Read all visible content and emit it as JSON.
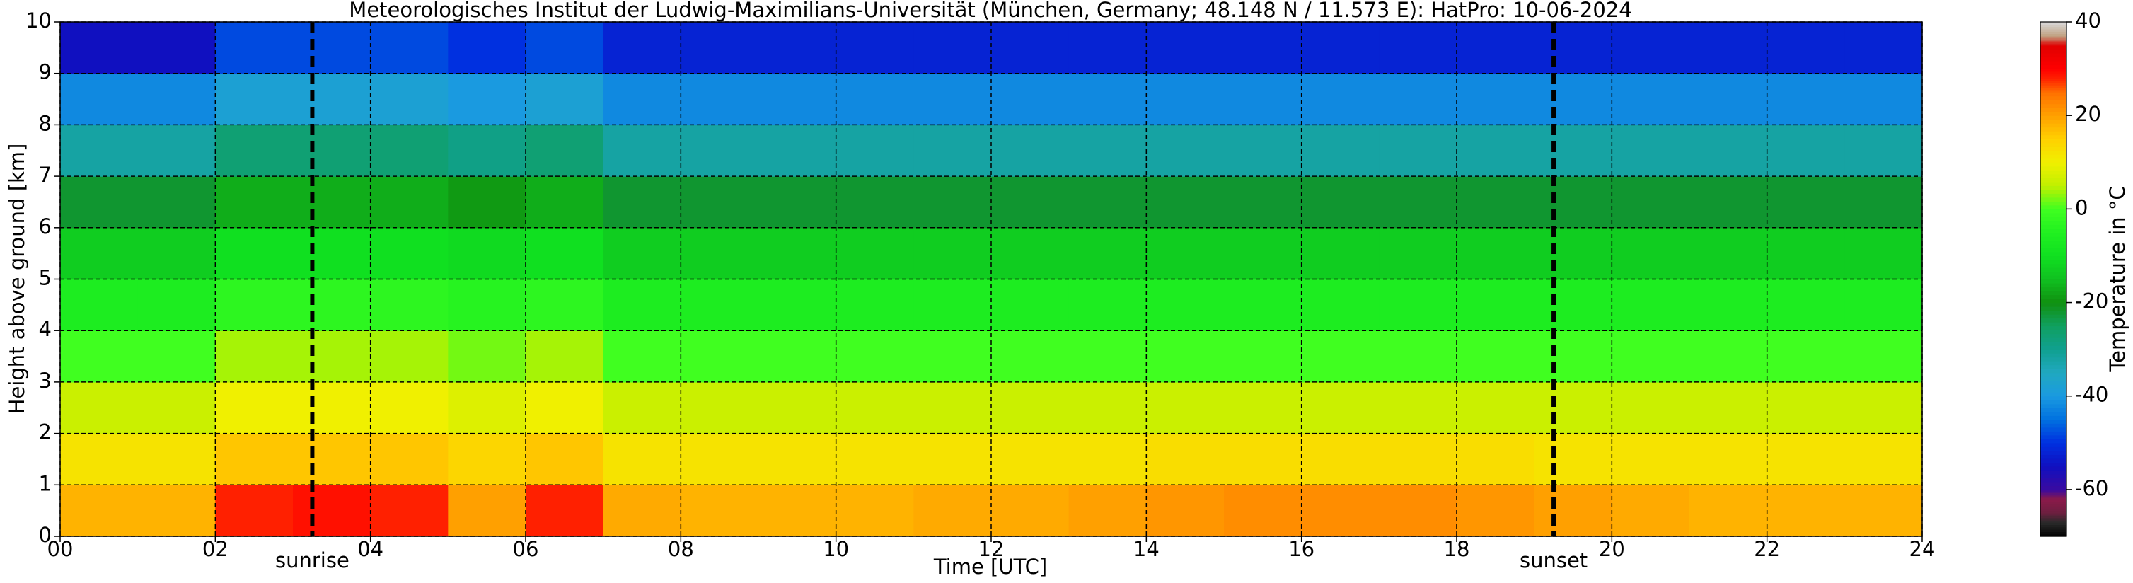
{
  "chart_data": {
    "type": "heatmap",
    "title": "Meteorologisches Institut der Ludwig-Maximilians-Universität (München, Germany; 48.148 N / 11.573 E):    HatPro: 10-06-2024",
    "xlabel": "Time [UTC]",
    "ylabel": "Height above ground [km]",
    "colorbar_label": "Temperature in °C",
    "xbins": [
      0,
      1,
      2,
      3,
      4,
      5,
      6,
      7,
      8,
      9,
      10,
      11,
      12,
      13,
      14,
      15,
      16,
      17,
      18,
      19,
      20,
      21,
      22,
      23,
      24
    ],
    "ybins": [
      0,
      1,
      2,
      3,
      4,
      5,
      6,
      7,
      8,
      9,
      10
    ],
    "z": [
      [
        18,
        18,
        28,
        29,
        28,
        20,
        28,
        19,
        18,
        18,
        18,
        19,
        19,
        20,
        21,
        22,
        22,
        22,
        21,
        20,
        19,
        18,
        18,
        18
      ],
      [
        12,
        12,
        16,
        16,
        16,
        14,
        16,
        12,
        12,
        12,
        12,
        12,
        12,
        12,
        13,
        13,
        13,
        13,
        13,
        12,
        12,
        12,
        12,
        12
      ],
      [
        6,
        6,
        10,
        10,
        10,
        8,
        10,
        6,
        6,
        6,
        6,
        6,
        6,
        6,
        6,
        6,
        6,
        6,
        6,
        6,
        6,
        6,
        6,
        6
      ],
      [
        0,
        0,
        4,
        4,
        4,
        2,
        4,
        0,
        0,
        0,
        0,
        0,
        0,
        0,
        0,
        0,
        0,
        0,
        0,
        0,
        0,
        0,
        0,
        0
      ],
      [
        -6,
        -6,
        -3,
        -3,
        -3,
        -4,
        -3,
        -6,
        -6,
        -6,
        -6,
        -6,
        -6,
        -6,
        -6,
        -6,
        -6,
        -6,
        -6,
        -6,
        -6,
        -6,
        -6,
        -6
      ],
      [
        -13,
        -13,
        -10,
        -10,
        -10,
        -11,
        -10,
        -13,
        -13,
        -13,
        -13,
        -13,
        -13,
        -13,
        -13,
        -13,
        -13,
        -13,
        -13,
        -13,
        -13,
        -13,
        -13,
        -13
      ],
      [
        -22,
        -22,
        -17,
        -17,
        -17,
        -19,
        -17,
        -22,
        -22,
        -22,
        -22,
        -22,
        -22,
        -22,
        -22,
        -22,
        -22,
        -22,
        -22,
        -22,
        -22,
        -22,
        -22,
        -22
      ],
      [
        -32,
        -32,
        -27,
        -27,
        -27,
        -29,
        -27,
        -32,
        -32,
        -32,
        -32,
        -32,
        -32,
        -32,
        -32,
        -32,
        -32,
        -32,
        -32,
        -32,
        -32,
        -32,
        -32,
        -32
      ],
      [
        -42,
        -42,
        -38,
        -38,
        -38,
        -40,
        -38,
        -42,
        -42,
        -42,
        -42,
        -42,
        -42,
        -42,
        -42,
        -42,
        -42,
        -42,
        -42,
        -42,
        -42,
        -42,
        -42,
        -42
      ],
      [
        -55,
        -55,
        -48,
        -48,
        -48,
        -50,
        -48,
        -52,
        -52,
        -52,
        -52,
        -52,
        -52,
        -52,
        -52,
        -52,
        -52,
        -52,
        -52,
        -52,
        -52,
        -52,
        -52,
        -52
      ]
    ],
    "xlim": [
      0,
      24
    ],
    "xticks": [
      {
        "value": 0,
        "label": "00"
      },
      {
        "value": 2,
        "label": "02"
      },
      {
        "value": 4,
        "label": "04"
      },
      {
        "value": 6,
        "label": "06"
      },
      {
        "value": 8,
        "label": "08"
      },
      10,
      12,
      14,
      16,
      18,
      20,
      22,
      24
    ],
    "ylim": [
      0,
      10
    ],
    "yticks": [
      0,
      1,
      2,
      3,
      4,
      5,
      6,
      7,
      8,
      9,
      10
    ],
    "clim": [
      -70,
      40
    ],
    "cticks": [
      -60,
      -40,
      -20,
      0,
      20,
      40
    ],
    "colorscale": [
      [
        -70,
        "#000000"
      ],
      [
        -67,
        "#2a2a2a"
      ],
      [
        -65,
        "#6b1f3f"
      ],
      [
        -62,
        "#8b1a4a"
      ],
      [
        -60,
        "#3a0aa0"
      ],
      [
        -55,
        "#1010c0"
      ],
      [
        -50,
        "#0030e0"
      ],
      [
        -45,
        "#0070e0"
      ],
      [
        -40,
        "#1a9ae0"
      ],
      [
        -35,
        "#20a8c0"
      ],
      [
        -30,
        "#10a090"
      ],
      [
        -25,
        "#10a060"
      ],
      [
        -20,
        "#109010"
      ],
      [
        -15,
        "#10c020"
      ],
      [
        -10,
        "#10e020"
      ],
      [
        -5,
        "#20f020"
      ],
      [
        0,
        "#40ff20"
      ],
      [
        5,
        "#c0f000"
      ],
      [
        10,
        "#f0f000"
      ],
      [
        15,
        "#ffd000"
      ],
      [
        20,
        "#ffa000"
      ],
      [
        25,
        "#ff7000"
      ],
      [
        28,
        "#ff2000"
      ],
      [
        30,
        "#ff0000"
      ],
      [
        35,
        "#e00000"
      ],
      [
        37,
        "#c0a080"
      ],
      [
        40,
        "#d8d8d8"
      ]
    ],
    "grid": true,
    "annotations": [
      {
        "text": "sunrise",
        "x": 3.25
      },
      {
        "text": "sunset",
        "x": 19.25
      }
    ]
  }
}
